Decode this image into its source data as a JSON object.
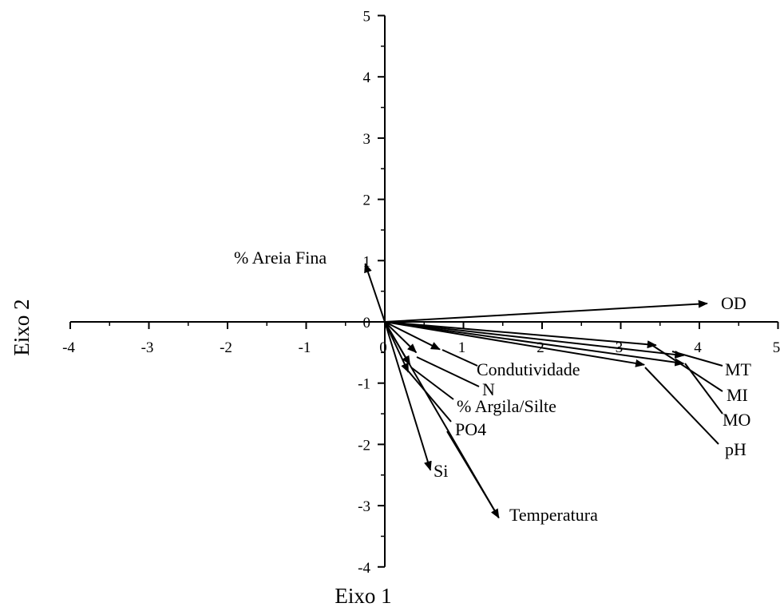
{
  "chart_data": {
    "type": "biplot",
    "xlabel": "Eixo 1",
    "ylabel": "Eixo 2",
    "xlim": [
      -4,
      5
    ],
    "ylim": [
      -4,
      5
    ],
    "xticks": [
      -4,
      -3,
      -2,
      -1,
      0,
      1,
      2,
      3,
      4,
      5
    ],
    "yticks": [
      -4,
      -3,
      -2,
      -1,
      0,
      1,
      2,
      3,
      4,
      5
    ],
    "grid": false,
    "vectors": [
      {
        "name": "% Areia Fina",
        "x": -0.25,
        "y": 0.95
      },
      {
        "name": "OD",
        "x": 4.1,
        "y": 0.3
      },
      {
        "name": "MT",
        "x": 3.8,
        "y": -0.55
      },
      {
        "name": "MI",
        "x": 3.45,
        "y": -0.38
      },
      {
        "name": "MO",
        "x": 3.8,
        "y": -0.68
      },
      {
        "name": "pH",
        "x": 3.3,
        "y": -0.7
      },
      {
        "name": "Condutividade",
        "x": 0.7,
        "y": -0.45
      },
      {
        "name": "N",
        "x": 0.4,
        "y": -0.5
      },
      {
        "name": "% Argila/Silte",
        "x": 0.32,
        "y": -0.7
      },
      {
        "name": "PO4",
        "x": 0.3,
        "y": -0.82
      },
      {
        "name": "Si",
        "x": 0.58,
        "y": -2.42
      },
      {
        "name": "Temperatura",
        "x": 1.45,
        "y": -3.2
      }
    ]
  }
}
